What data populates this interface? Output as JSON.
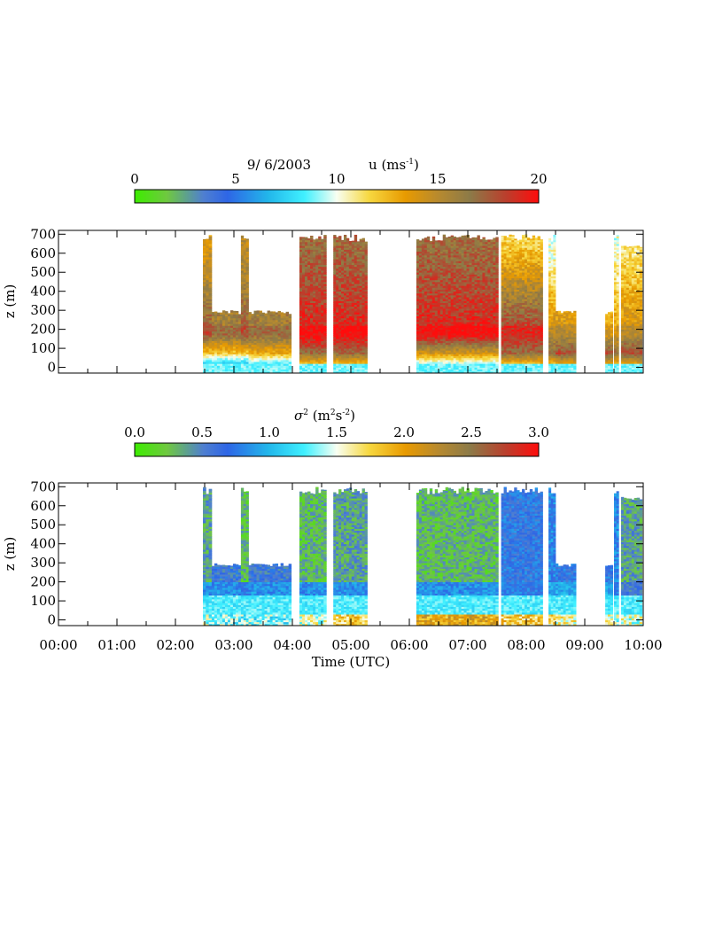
{
  "chart_data": [
    {
      "type": "heatmap",
      "title_date": "9/ 6/2003",
      "colorbar": {
        "label": "u",
        "units_base": "(ms",
        "units_exp": "-1",
        "units_close": ")",
        "ticks": [
          "0",
          "5",
          "10",
          "15",
          "20"
        ],
        "range": [
          0,
          20
        ]
      },
      "ylabel": "z (m)",
      "yticks": [
        "0",
        "100",
        "200",
        "300",
        "400",
        "500",
        "600",
        "700"
      ],
      "ylim": [
        -30,
        720
      ],
      "xlim": [
        0,
        10
      ],
      "profiles": [
        {
          "start": 2.47,
          "end": 2.62,
          "top": 700,
          "lowu": 7,
          "jet": 17,
          "topu": 14
        },
        {
          "start": 2.62,
          "end": 3.12,
          "top": 300,
          "lowu": 7,
          "jet": 16,
          "topu": 15
        },
        {
          "start": 3.12,
          "end": 3.25,
          "top": 700,
          "lowu": 7,
          "jet": 17,
          "topu": 15
        },
        {
          "start": 3.25,
          "end": 3.98,
          "top": 300,
          "lowu": 8,
          "jet": 16,
          "topu": 15
        },
        {
          "start": 4.12,
          "end": 4.58,
          "top": 700,
          "lowu": 12,
          "jet": 19,
          "topu": 17
        },
        {
          "start": 4.7,
          "end": 5.28,
          "top": 700,
          "lowu": 12,
          "jet": 19,
          "topu": 17
        },
        {
          "start": 6.12,
          "end": 7.52,
          "top": 700,
          "lowu": 9,
          "jet": 19,
          "topu": 17
        },
        {
          "start": 7.57,
          "end": 8.28,
          "top": 700,
          "lowu": 12,
          "jet": 18,
          "topu": 12
        },
        {
          "start": 8.38,
          "end": 8.5,
          "top": 700,
          "lowu": 12,
          "jet": 14,
          "topu": 10
        },
        {
          "start": 8.5,
          "end": 8.85,
          "top": 300,
          "lowu": 13,
          "jet": 14,
          "topu": 11
        },
        {
          "start": 9.35,
          "end": 9.48,
          "top": 300,
          "lowu": 13,
          "jet": 13,
          "topu": 11
        },
        {
          "start": 9.5,
          "end": 9.58,
          "top": 700,
          "lowu": 12,
          "jet": 13,
          "topu": 10
        },
        {
          "start": 9.62,
          "end": 9.98,
          "top": 650,
          "lowu": 13,
          "jet": 14,
          "topu": 11
        }
      ]
    },
    {
      "type": "heatmap",
      "colorbar": {
        "label": "σ",
        "label_exp": "2",
        "units_base": "(m",
        "units_exp1": "2",
        "units_mid": "s",
        "units_exp2": "-2",
        "units_close": ")",
        "ticks": [
          "0.0",
          "0.5",
          "1.0",
          "1.5",
          "2.0",
          "2.5",
          "3.0"
        ],
        "range": [
          0,
          3
        ]
      },
      "ylabel": "z (m)",
      "yticks": [
        "0",
        "100",
        "200",
        "300",
        "400",
        "500",
        "600",
        "700"
      ],
      "ylim": [
        -30,
        720
      ],
      "xlim": [
        0,
        10
      ],
      "xlabel": "Time (UTC)",
      "xticks": [
        "00:00",
        "01:00",
        "02:00",
        "03:00",
        "04:00",
        "05:00",
        "06:00",
        "07:00",
        "08:00",
        "09:00",
        "10:00"
      ],
      "profiles": [
        {
          "start": 2.47,
          "end": 2.62,
          "top": 700,
          "low": 1.1,
          "mid": 0.7,
          "upper": 0.4
        },
        {
          "start": 2.62,
          "end": 3.12,
          "top": 300,
          "low": 1.0,
          "mid": 0.7,
          "upper": 0.6
        },
        {
          "start": 3.12,
          "end": 3.25,
          "top": 700,
          "low": 1.0,
          "mid": 0.6,
          "upper": 0.3
        },
        {
          "start": 3.25,
          "end": 3.98,
          "top": 300,
          "low": 1.0,
          "mid": 0.7,
          "upper": 0.6
        },
        {
          "start": 4.12,
          "end": 4.58,
          "top": 700,
          "low": 1.2,
          "mid": 0.7,
          "upper": 0.3
        },
        {
          "start": 4.7,
          "end": 5.28,
          "top": 700,
          "low": 1.5,
          "mid": 0.7,
          "upper": 0.4
        },
        {
          "start": 6.12,
          "end": 7.52,
          "top": 700,
          "low": 1.7,
          "mid": 0.7,
          "upper": 0.3
        },
        {
          "start": 7.57,
          "end": 8.28,
          "top": 700,
          "low": 1.5,
          "mid": 0.6,
          "upper": 0.7
        },
        {
          "start": 8.38,
          "end": 8.5,
          "top": 700,
          "low": 1.4,
          "mid": 0.8,
          "upper": 0.8
        },
        {
          "start": 8.5,
          "end": 8.85,
          "top": 300,
          "low": 1.3,
          "mid": 0.8,
          "upper": 0.7
        },
        {
          "start": 9.35,
          "end": 9.48,
          "top": 300,
          "low": 1.3,
          "mid": 0.8,
          "upper": 0.7
        },
        {
          "start": 9.5,
          "end": 9.58,
          "top": 700,
          "low": 1.1,
          "mid": 0.6,
          "upper": 0.8
        },
        {
          "start": 9.62,
          "end": 9.98,
          "top": 650,
          "low": 1.2,
          "mid": 0.4,
          "upper": 0.4
        }
      ]
    }
  ]
}
